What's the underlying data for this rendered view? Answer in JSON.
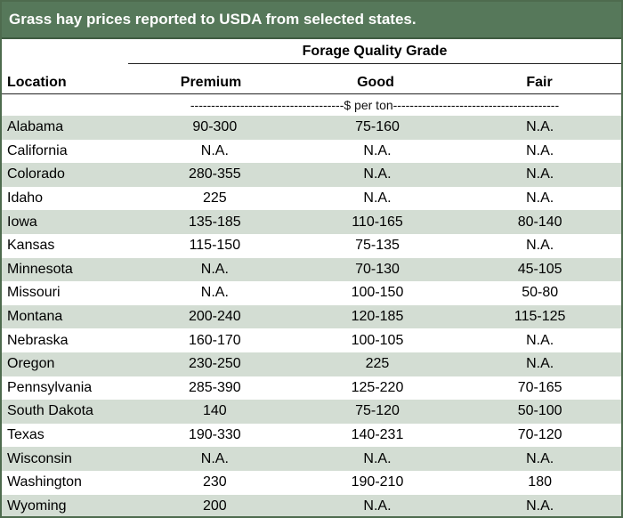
{
  "title": "Grass hay prices reported to USDA from selected states.",
  "header": {
    "group_label": "Forage Quality Grade",
    "location_label": "Location",
    "columns": [
      "Premium",
      "Good",
      "Fair"
    ],
    "units": "-------------------------------------$ per ton----------------------------------------"
  },
  "colors": {
    "title_background": "#56785a",
    "shaded_row": "#d3ddd3"
  },
  "rows": [
    {
      "location": "Alabama",
      "premium": "90-300",
      "good": "75-160",
      "fair": "N.A."
    },
    {
      "location": "California",
      "premium": "N.A.",
      "good": "N.A.",
      "fair": "N.A."
    },
    {
      "location": "Colorado",
      "premium": "280-355",
      "good": "N.A.",
      "fair": "N.A."
    },
    {
      "location": "Idaho",
      "premium": "225",
      "good": "N.A.",
      "fair": "N.A."
    },
    {
      "location": "Iowa",
      "premium": "135-185",
      "good": "110-165",
      "fair": "80-140"
    },
    {
      "location": "Kansas",
      "premium": "115-150",
      "good": "75-135",
      "fair": "N.A."
    },
    {
      "location": "Minnesota",
      "premium": "N.A.",
      "good": "70-130",
      "fair": "45-105"
    },
    {
      "location": "Missouri",
      "premium": "N.A.",
      "good": "100-150",
      "fair": "50-80"
    },
    {
      "location": "Montana",
      "premium": "200-240",
      "good": "120-185",
      "fair": "115-125"
    },
    {
      "location": "Nebraska",
      "premium": "160-170",
      "good": "100-105",
      "fair": "N.A."
    },
    {
      "location": "Oregon",
      "premium": "230-250",
      "good": "225",
      "fair": "N.A."
    },
    {
      "location": "Pennsylvania",
      "premium": "285-390",
      "good": "125-220",
      "fair": "70-165"
    },
    {
      "location": "South Dakota",
      "premium": "140",
      "good": "75-120",
      "fair": "50-100"
    },
    {
      "location": "Texas",
      "premium": "190-330",
      "good": "140-231",
      "fair": "70-120"
    },
    {
      "location": "Wisconsin",
      "premium": "N.A.",
      "good": "N.A.",
      "fair": "N.A."
    },
    {
      "location": "Washington",
      "premium": "230",
      "good": "190-210",
      "fair": "180"
    },
    {
      "location": "Wyoming",
      "premium": "200",
      "good": "N.A.",
      "fair": "N.A."
    }
  ]
}
